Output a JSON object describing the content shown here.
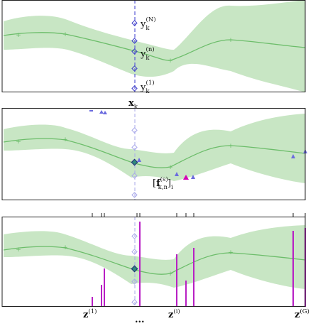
{
  "panel1": {
    "labels": {
      "y_sym": "y",
      "y_sub": "k",
      "sup_N": "(N)",
      "sup_n": "(n)",
      "sup_1": "(1)"
    },
    "x_label": {
      "sym": "x",
      "sub": "k"
    }
  },
  "panel2": {
    "label": {
      "open": "[",
      "sym": "f",
      "sup": "(s)",
      "sub": "k,n",
      "close": "]",
      "sub2": "i"
    }
  },
  "panel3": {
    "labels": {
      "z": "z",
      "sup_1": "(1)",
      "sup_i": "(i)",
      "sup_G": "(G)",
      "dots": "..."
    }
  },
  "colors": {
    "band": "#c8e6c4",
    "mean": "#6cbd6a",
    "axis_dash": "#5b5bd6",
    "diamond": "#3a3ac8",
    "triangle": "#6b6bde",
    "highlight": "#d400b5",
    "bar": "#b81fc4"
  }
}
